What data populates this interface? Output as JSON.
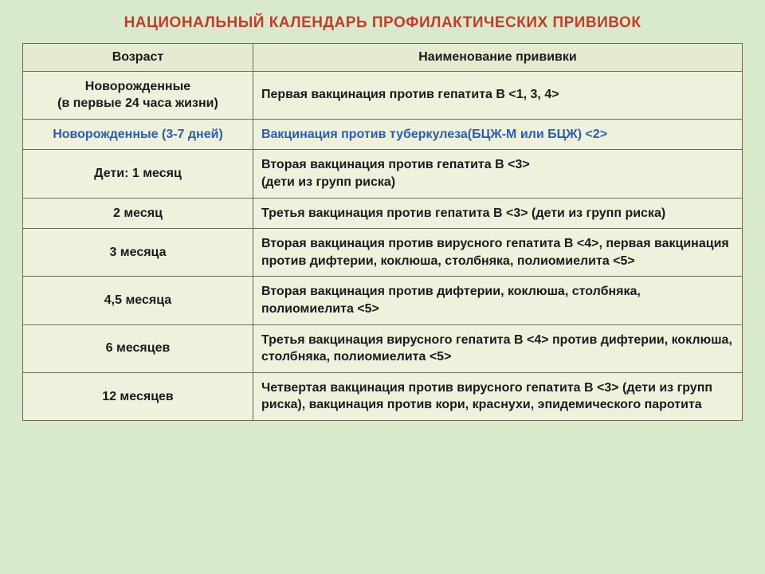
{
  "title": "НАЦИОНАЛЬНЫЙ КАЛЕНДАРЬ ПРОФИЛАКТИЧЕСКИХ ПРИВИВОК",
  "columns": {
    "age": "Возраст",
    "vaccine": "Наименование прививки"
  },
  "rows": [
    {
      "age": "Новорожденные\n(в первые 24 часа жизни)",
      "vaccine": "Первая вакцинация против гепатита B <1, 3, 4>",
      "highlight": false
    },
    {
      "age": "Новорожденные (3-7 дней)",
      "vaccine": "Вакцинация против туберкулеза(БЦЖ-М или БЦЖ) <2>",
      "highlight": true
    },
    {
      "age": "Дети: 1 месяц",
      "vaccine": "Вторая вакцинация против гепатита B <3>\n (дети из групп риска)",
      "highlight": false
    },
    {
      "age": "2 месяц",
      "vaccine": "Третья вакцинация против гепатита B <3> (дети из групп риска)",
      "highlight": false
    },
    {
      "age": "3 месяца",
      "vaccine": "Вторая вакцинация против вирусного гепатита B <4>, первая вакцинация против дифтерии, коклюша, столбняка, полиомиелита <5>",
      "highlight": false
    },
    {
      "age": "4,5 месяца",
      "vaccine": "Вторая вакцинация против дифтерии, коклюша, столбняка, полиомиелита <5>",
      "highlight": false
    },
    {
      "age": "6 месяцев",
      "vaccine": "Третья вакцинация вирусного гепатита B <4> против дифтерии, коклюша, столбняка, полиомиелита <5>",
      "highlight": false
    },
    {
      "age": "12 месяцев",
      "vaccine": "Четвертая вакцинация против вирусного гепатита B <3> (дети из групп риска), вакцинация против кори, краснухи, эпидемического паротита",
      "highlight": false
    }
  ],
  "styling": {
    "page_bg": "#d8eacb",
    "table_bg": "#eef2dd",
    "header_bg": "#e4ebd0",
    "border_color": "#6f6757",
    "title_color": "#c83a2a",
    "text_color": "#1a1a1a",
    "highlight_color": "#2a5db0",
    "title_fontsize": 19,
    "cell_fontsize": 16,
    "col_widths_pct": [
      32,
      68
    ]
  }
}
